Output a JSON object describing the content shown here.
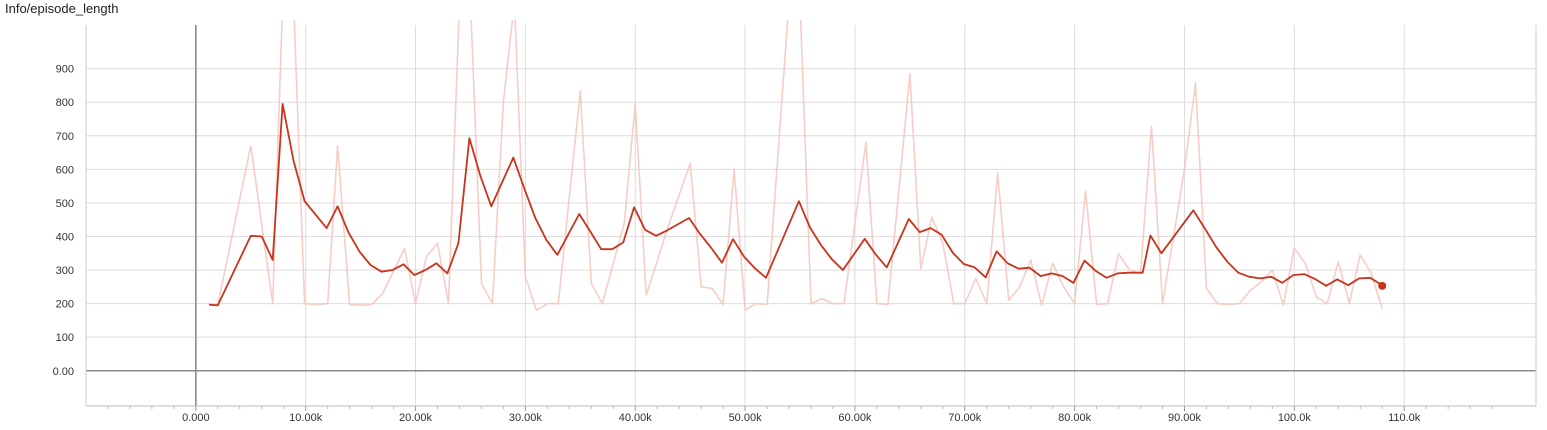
{
  "chart_data": {
    "type": "line",
    "title": "Info/episode_length",
    "xlabel": "",
    "ylabel": "",
    "xlim": [
      -10000,
      122000
    ],
    "ylim": [
      -105,
      1030
    ],
    "grid": true,
    "legend": "none",
    "x_ticks": [
      {
        "v": 0,
        "label": "0.000"
      },
      {
        "v": 10000,
        "label": "10.00k"
      },
      {
        "v": 20000,
        "label": "20.00k"
      },
      {
        "v": 30000,
        "label": "30.00k"
      },
      {
        "v": 40000,
        "label": "40.00k"
      },
      {
        "v": 50000,
        "label": "50.00k"
      },
      {
        "v": 60000,
        "label": "60.00k"
      },
      {
        "v": 70000,
        "label": "70.00k"
      },
      {
        "v": 80000,
        "label": "80.00k"
      },
      {
        "v": 90000,
        "label": "90.00k"
      },
      {
        "v": 100000,
        "label": "100.0k"
      },
      {
        "v": 110000,
        "label": "110.0k"
      }
    ],
    "y_ticks": [
      {
        "v": 0,
        "label": "0.00"
      },
      {
        "v": 100,
        "label": "100"
      },
      {
        "v": 200,
        "label": "200"
      },
      {
        "v": 300,
        "label": "300"
      },
      {
        "v": 400,
        "label": "400"
      },
      {
        "v": 500,
        "label": "500"
      },
      {
        "v": 600,
        "label": "600"
      },
      {
        "v": 700,
        "label": "700"
      },
      {
        "v": 800,
        "label": "800"
      },
      {
        "v": 900,
        "label": "900"
      }
    ],
    "series": [
      {
        "role": "raw",
        "color": "#f5c6bb",
        "x": [
          1200,
          2000,
          5000,
          7000,
          7900,
          8900,
          9900,
          11000,
          12000,
          12900,
          14000,
          15000,
          16000,
          17000,
          19000,
          20000,
          21000,
          22000,
          23000,
          24000,
          25000,
          26000,
          27000,
          28000,
          29000,
          30000,
          31000,
          32000,
          33000,
          35000,
          36000,
          37000,
          39000,
          40000,
          41000,
          43000,
          45000,
          46000,
          47000,
          48000,
          49000,
          50000,
          51000,
          52000,
          54000,
          55000,
          56000,
          57000,
          58000,
          59000,
          60000,
          61000,
          62000,
          63000,
          64000,
          65000,
          66000,
          67000,
          68000,
          69000,
          70000,
          71000,
          72000,
          73000,
          74000,
          75000,
          76000,
          77000,
          78000,
          79000,
          80000,
          81000,
          82000,
          83000,
          84000,
          85000,
          86000,
          87000,
          88000,
          89000,
          90000,
          91000,
          92000,
          93000,
          94000,
          95000,
          96000,
          97000,
          98000,
          99000,
          100000,
          101000,
          102000,
          103000,
          104000,
          105000,
          106000,
          107000,
          108000
        ],
        "y": [
          196,
          196,
          670,
          200,
          1100,
          1100,
          200,
          197,
          200,
          670,
          197,
          195,
          197,
          230,
          365,
          200,
          340,
          380,
          200,
          1100,
          1100,
          260,
          200,
          800,
          1100,
          280,
          180,
          200,
          200,
          833,
          260,
          200,
          440,
          795,
          225,
          430,
          618,
          250,
          245,
          197,
          600,
          180,
          200,
          197,
          1100,
          1100,
          200,
          215,
          200,
          200,
          440,
          680,
          200,
          197,
          540,
          885,
          305,
          457,
          380,
          200,
          200,
          275,
          200,
          590,
          210,
          250,
          330,
          195,
          320,
          250,
          200,
          535,
          197,
          200,
          348,
          300,
          290,
          728,
          200,
          400,
          600,
          857,
          245,
          200,
          197,
          200,
          240,
          265,
          300,
          196,
          365,
          320,
          220,
          200,
          325,
          200,
          345,
          290,
          185
        ]
      },
      {
        "role": "smoothed",
        "color": "#c8341e",
        "x": [
          1200,
          2000,
          5000,
          6000,
          7000,
          7900,
          8900,
          9900,
          11900,
          12900,
          13900,
          14900,
          15900,
          16900,
          17900,
          18900,
          19900,
          20900,
          21900,
          22900,
          23900,
          24900,
          25900,
          26900,
          28900,
          29900,
          30900,
          31900,
          32900,
          34900,
          35900,
          36900,
          37900,
          38900,
          39900,
          40900,
          41900,
          42900,
          44900,
          45900,
          46900,
          47900,
          48900,
          49900,
          50900,
          51900,
          54900,
          55900,
          56900,
          57900,
          58900,
          60900,
          61900,
          62900,
          64900,
          65900,
          66900,
          67900,
          68900,
          69900,
          70900,
          71900,
          72900,
          73900,
          74900,
          75900,
          76900,
          77900,
          78900,
          79900,
          80900,
          81900,
          82900,
          83900,
          84900,
          86200,
          86900,
          87900,
          90800,
          91900,
          92900,
          93900,
          94900,
          95900,
          96900,
          97900,
          98900,
          99900,
          100900,
          101900,
          102900,
          103900,
          104900,
          105900,
          106900,
          107900
        ],
        "y": [
          197,
          195,
          402,
          400,
          330,
          795,
          625,
          505,
          425,
          490,
          412,
          355,
          315,
          295,
          300,
          317,
          285,
          300,
          320,
          290,
          380,
          693,
          580,
          490,
          635,
          543,
          455,
          390,
          345,
          467,
          415,
          362,
          362,
          382,
          487,
          420,
          402,
          418,
          455,
          407,
          367,
          322,
          392,
          340,
          305,
          277,
          505,
          427,
          375,
          332,
          300,
          393,
          346,
          308,
          452,
          413,
          425,
          405,
          352,
          318,
          308,
          278,
          356,
          320,
          304,
          307,
          282,
          290,
          282,
          262,
          328,
          298,
          277,
          290,
          292,
          292,
          403,
          350,
          478,
          421,
          368,
          325,
          292,
          280,
          275,
          280,
          262,
          285,
          288,
          273,
          253,
          272,
          255,
          275,
          277,
          257
        ]
      }
    ],
    "last_point": {
      "x": 108000,
      "y": 253
    }
  }
}
